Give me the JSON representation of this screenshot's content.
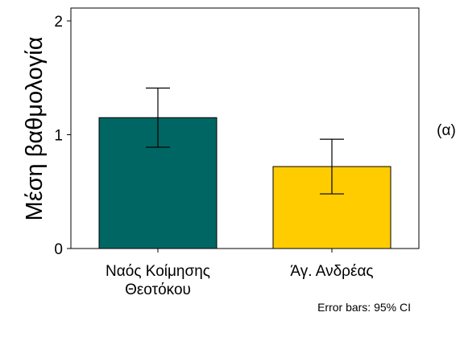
{
  "chart_data": {
    "type": "bar",
    "categories": [
      [
        "Ναός Κοίμησης",
        "Θεοτόκου"
      ],
      [
        "Άγ. Ανδρέας"
      ]
    ],
    "values": [
      1.15,
      0.72
    ],
    "error_bars": [
      {
        "lower": 0.89,
        "upper": 1.41
      },
      {
        "lower": 0.48,
        "upper": 0.96
      }
    ],
    "bar_colors": [
      "#006663",
      "#FFCC00"
    ],
    "ylabel": "Μέση βαθμολογία",
    "ylim": [
      0,
      2
    ],
    "yticks": [
      "0",
      "1",
      "2"
    ],
    "ytick_values": [
      0,
      1,
      2
    ],
    "grid": false,
    "panel_label": "(α)",
    "note": "Error bars: 95% CI"
  }
}
